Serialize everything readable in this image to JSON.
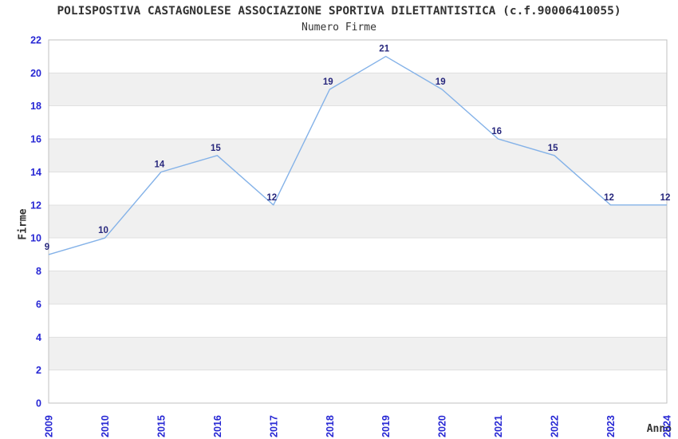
{
  "title": "POLISPOSTIVA CASTAGNOLESE ASSOCIAZIONE SPORTIVA DILETTANTISTICA (c.f.90006410055)",
  "subtitle": "Numero Firme",
  "chart_data": {
    "type": "line",
    "title": "POLISPOSTIVA CASTAGNOLESE ASSOCIAZIONE SPORTIVA DILETTANTISTICA (c.f.90006410055)",
    "subtitle": "Numero Firme",
    "xlabel": "Anno",
    "ylabel": "Firme",
    "categories": [
      "2009",
      "2010",
      "2015",
      "2016",
      "2017",
      "2018",
      "2019",
      "2020",
      "2021",
      "2022",
      "2023",
      "2024"
    ],
    "values": [
      9,
      10,
      14,
      15,
      12,
      19,
      21,
      19,
      16,
      15,
      12,
      12
    ],
    "ylim": [
      0,
      22
    ],
    "yticks": [
      0,
      2,
      4,
      6,
      8,
      10,
      12,
      14,
      16,
      18,
      20,
      22
    ],
    "grid": "alternating-horizontal-bands",
    "legend": "none",
    "colors": {
      "line": "#84b2e8",
      "tick_label": "#2727d4",
      "data_label": "#28287d",
      "band_gray": "#f0f0f0",
      "band_white": "#ffffff",
      "gridline": "#e0e0e0",
      "border": "#c0c0c0",
      "text": "#333333",
      "background": "#ffffff"
    }
  }
}
